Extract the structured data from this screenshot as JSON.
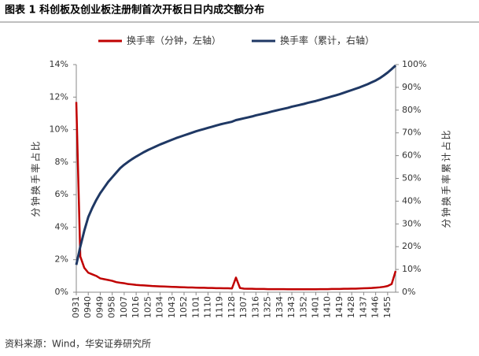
{
  "chart_data": {
    "type": "line",
    "title": "图表 1  科创板及创业板注册制首次开板日日内成交额分布",
    "source": "资料来源：Wind，华安证券研究所",
    "ylabel": "分钟换手率占比",
    "y2label": "分钟换手率累计占比",
    "categories": [
      "0931",
      null,
      null,
      "0940",
      null,
      null,
      "0949",
      null,
      null,
      "0958",
      null,
      null,
      "1007",
      null,
      null,
      "1016",
      null,
      null,
      "1025",
      null,
      null,
      "1034",
      null,
      null,
      "1043",
      null,
      null,
      "1052",
      null,
      null,
      "1101",
      null,
      null,
      "1110",
      null,
      null,
      "1119",
      null,
      null,
      "1128",
      null,
      null,
      "1307",
      null,
      null,
      "1316",
      null,
      null,
      "1325",
      null,
      null,
      "1334",
      null,
      null,
      "1343",
      null,
      null,
      "1352",
      null,
      null,
      "1401",
      null,
      null,
      "1410",
      null,
      null,
      "1419",
      null,
      null,
      "1428",
      null,
      null,
      "1437",
      null,
      null,
      "1446",
      null,
      null,
      "1455",
      null,
      null
    ],
    "series": [
      {
        "name": "换手率（分钟，左轴）",
        "color": "#c00000",
        "axis": "y",
        "values": [
          11.7,
          2.2,
          1.5,
          1.2,
          1.1,
          1.0,
          0.85,
          0.8,
          0.75,
          0.7,
          0.62,
          0.58,
          0.55,
          0.5,
          0.48,
          0.45,
          0.43,
          0.42,
          0.4,
          0.38,
          0.37,
          0.36,
          0.35,
          0.34,
          0.33,
          0.32,
          0.31,
          0.3,
          0.29,
          0.29,
          0.28,
          0.27,
          0.27,
          0.26,
          0.26,
          0.25,
          0.25,
          0.24,
          0.24,
          0.23,
          0.9,
          0.26,
          0.22,
          0.21,
          0.21,
          0.2,
          0.2,
          0.2,
          0.19,
          0.19,
          0.19,
          0.19,
          0.19,
          0.18,
          0.18,
          0.18,
          0.18,
          0.18,
          0.18,
          0.18,
          0.18,
          0.19,
          0.19,
          0.19,
          0.2,
          0.2,
          0.2,
          0.21,
          0.21,
          0.22,
          0.22,
          0.23,
          0.24,
          0.25,
          0.26,
          0.28,
          0.3,
          0.33,
          0.38,
          0.5,
          1.3
        ]
      },
      {
        "name": "换手率（累计，右轴）",
        "color": "#1f3864",
        "axis": "y2",
        "values": [
          12,
          20,
          27,
          33,
          37,
          40.5,
          43.5,
          46,
          48.5,
          50.5,
          52.5,
          54.5,
          56,
          57.3,
          58.5,
          59.6,
          60.6,
          61.6,
          62.5,
          63.3,
          64.1,
          64.9,
          65.6,
          66.3,
          67,
          67.7,
          68.3,
          68.9,
          69.5,
          70.1,
          70.7,
          71.2,
          71.7,
          72.2,
          72.7,
          73.2,
          73.7,
          74.1,
          74.5,
          74.9,
          75.6,
          76,
          76.4,
          76.8,
          77.2,
          77.7,
          78.1,
          78.5,
          78.9,
          79.4,
          79.8,
          80.2,
          80.6,
          81,
          81.5,
          81.9,
          82.3,
          82.7,
          83.2,
          83.6,
          84,
          84.5,
          85,
          85.5,
          86,
          86.5,
          87,
          87.6,
          88.2,
          88.8,
          89.4,
          90,
          90.7,
          91.4,
          92.2,
          93,
          94,
          95.2,
          96.5,
          98,
          99.6
        ]
      }
    ],
    "ylim": [
      0,
      14
    ],
    "yticks": [
      {
        "value": 0,
        "label": "0%"
      },
      {
        "value": 2,
        "label": "2%"
      },
      {
        "value": 4,
        "label": "4%"
      },
      {
        "value": 6,
        "label": "6%"
      },
      {
        "value": 8,
        "label": "8%"
      },
      {
        "value": 10,
        "label": "10%"
      },
      {
        "value": 12,
        "label": "12%"
      },
      {
        "value": 14,
        "label": "14%"
      }
    ],
    "y2lim": [
      0,
      100
    ],
    "y2ticks": [
      {
        "value": 0,
        "label": "0%"
      },
      {
        "value": 10,
        "label": "10%"
      },
      {
        "value": 20,
        "label": "20%"
      },
      {
        "value": 30,
        "label": "30%"
      },
      {
        "value": 40,
        "label": "40%"
      },
      {
        "value": 50,
        "label": "50%"
      },
      {
        "value": 60,
        "label": "60%"
      },
      {
        "value": 70,
        "label": "70%"
      },
      {
        "value": 80,
        "label": "80%"
      },
      {
        "value": 90,
        "label": "90%"
      },
      {
        "value": 100,
        "label": "100%"
      }
    ],
    "legend": "top"
  }
}
